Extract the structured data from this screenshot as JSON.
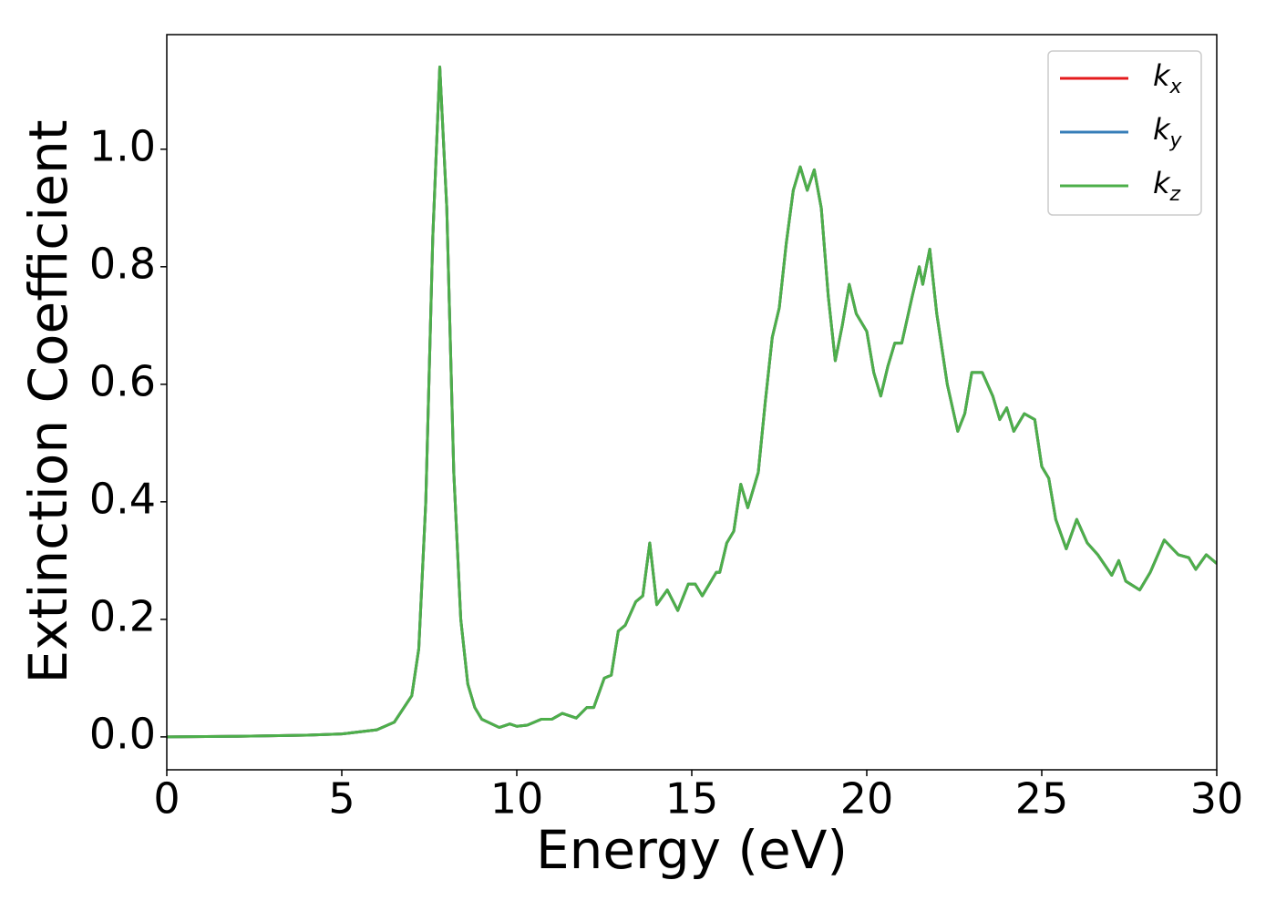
{
  "chart_data": {
    "type": "line",
    "xlabel": "Energy (eV)",
    "ylabel": "Extinction Coefficient",
    "x": [
      0,
      2,
      4,
      5,
      6,
      6.5,
      7,
      7.2,
      7.4,
      7.6,
      7.8,
      8.0,
      8.2,
      8.4,
      8.6,
      8.8,
      9.0,
      9.5,
      9.8,
      10,
      10.3,
      10.7,
      11,
      11.3,
      11.7,
      12,
      12.2,
      12.5,
      12.7,
      12.9,
      13.1,
      13.4,
      13.6,
      13.8,
      14.0,
      14.3,
      14.6,
      14.9,
      15.1,
      15.3,
      15.7,
      15.8,
      16.0,
      16.2,
      16.4,
      16.6,
      16.9,
      17.1,
      17.3,
      17.5,
      17.7,
      17.9,
      18.1,
      18.3,
      18.5,
      18.7,
      18.9,
      19.1,
      19.3,
      19.5,
      19.7,
      20.0,
      20.2,
      20.4,
      20.6,
      20.8,
      21.0,
      21.3,
      21.5,
      21.6,
      21.8,
      22.0,
      22.3,
      22.6,
      22.8,
      23.0,
      23.3,
      23.6,
      23.8,
      24.0,
      24.2,
      24.5,
      24.8,
      25.0,
      25.2,
      25.4,
      25.7,
      26.0,
      26.3,
      26.6,
      27.0,
      27.2,
      27.4,
      27.8,
      28.1,
      28.5,
      28.9,
      29.2,
      29.4,
      29.7,
      30.0
    ],
    "series": [
      {
        "name": "k_x",
        "color": "#e41a1c",
        "values": [
          0,
          0.001,
          0.003,
          0.005,
          0.012,
          0.025,
          0.07,
          0.15,
          0.4,
          0.85,
          1.14,
          0.9,
          0.45,
          0.2,
          0.09,
          0.05,
          0.03,
          0.016,
          0.022,
          0.018,
          0.02,
          0.03,
          0.03,
          0.04,
          0.032,
          0.05,
          0.05,
          0.1,
          0.105,
          0.18,
          0.19,
          0.23,
          0.24,
          0.33,
          0.225,
          0.25,
          0.215,
          0.26,
          0.26,
          0.24,
          0.28,
          0.28,
          0.33,
          0.35,
          0.43,
          0.39,
          0.45,
          0.57,
          0.68,
          0.73,
          0.84,
          0.93,
          0.97,
          0.93,
          0.965,
          0.9,
          0.75,
          0.64,
          0.7,
          0.77,
          0.72,
          0.69,
          0.62,
          0.58,
          0.63,
          0.67,
          0.67,
          0.75,
          0.8,
          0.77,
          0.83,
          0.72,
          0.6,
          0.52,
          0.55,
          0.62,
          0.62,
          0.58,
          0.54,
          0.56,
          0.52,
          0.55,
          0.54,
          0.46,
          0.44,
          0.37,
          0.32,
          0.37,
          0.33,
          0.31,
          0.275,
          0.3,
          0.265,
          0.25,
          0.28,
          0.335,
          0.31,
          0.305,
          0.285,
          0.31,
          0.295
        ]
      },
      {
        "name": "k_y",
        "color": "#377eb8",
        "values": [
          0,
          0.001,
          0.003,
          0.005,
          0.012,
          0.025,
          0.07,
          0.15,
          0.4,
          0.85,
          1.14,
          0.9,
          0.45,
          0.2,
          0.09,
          0.05,
          0.03,
          0.016,
          0.022,
          0.018,
          0.02,
          0.03,
          0.03,
          0.04,
          0.032,
          0.05,
          0.05,
          0.1,
          0.105,
          0.18,
          0.19,
          0.23,
          0.24,
          0.33,
          0.225,
          0.25,
          0.215,
          0.26,
          0.26,
          0.24,
          0.28,
          0.28,
          0.33,
          0.35,
          0.43,
          0.39,
          0.45,
          0.57,
          0.68,
          0.73,
          0.84,
          0.93,
          0.97,
          0.93,
          0.965,
          0.9,
          0.75,
          0.64,
          0.7,
          0.77,
          0.72,
          0.69,
          0.62,
          0.58,
          0.63,
          0.67,
          0.67,
          0.75,
          0.8,
          0.77,
          0.83,
          0.72,
          0.6,
          0.52,
          0.55,
          0.62,
          0.62,
          0.58,
          0.54,
          0.56,
          0.52,
          0.55,
          0.54,
          0.46,
          0.44,
          0.37,
          0.32,
          0.37,
          0.33,
          0.31,
          0.275,
          0.3,
          0.265,
          0.25,
          0.28,
          0.335,
          0.31,
          0.305,
          0.285,
          0.31,
          0.295
        ]
      },
      {
        "name": "k_z",
        "color": "#4daf4a",
        "values": [
          0,
          0.001,
          0.003,
          0.005,
          0.012,
          0.025,
          0.07,
          0.15,
          0.4,
          0.85,
          1.14,
          0.9,
          0.45,
          0.2,
          0.09,
          0.05,
          0.03,
          0.016,
          0.022,
          0.018,
          0.02,
          0.03,
          0.03,
          0.04,
          0.032,
          0.05,
          0.05,
          0.1,
          0.105,
          0.18,
          0.19,
          0.23,
          0.24,
          0.33,
          0.225,
          0.25,
          0.215,
          0.26,
          0.26,
          0.24,
          0.28,
          0.28,
          0.33,
          0.35,
          0.43,
          0.39,
          0.45,
          0.57,
          0.68,
          0.73,
          0.84,
          0.93,
          0.97,
          0.93,
          0.965,
          0.9,
          0.75,
          0.64,
          0.7,
          0.77,
          0.72,
          0.69,
          0.62,
          0.58,
          0.63,
          0.67,
          0.67,
          0.75,
          0.8,
          0.77,
          0.83,
          0.72,
          0.6,
          0.52,
          0.55,
          0.62,
          0.62,
          0.58,
          0.54,
          0.56,
          0.52,
          0.55,
          0.54,
          0.46,
          0.44,
          0.37,
          0.32,
          0.37,
          0.33,
          0.31,
          0.275,
          0.3,
          0.265,
          0.25,
          0.28,
          0.335,
          0.31,
          0.305,
          0.285,
          0.31,
          0.295
        ]
      }
    ],
    "xlim": [
      0,
      30
    ],
    "xticks": [
      0,
      5,
      10,
      15,
      20,
      25,
      30
    ],
    "ylim": [
      -0.056,
      1.195
    ],
    "yticks": [
      {
        "value": 0,
        "label": "0.0"
      },
      {
        "value": 0.2,
        "label": "0.2"
      },
      {
        "value": 0.4,
        "label": "0.4"
      },
      {
        "value": 0.6,
        "label": "0.6"
      },
      {
        "value": 0.8,
        "label": "0.8"
      },
      {
        "value": 1.0,
        "label": "1.0"
      }
    ],
    "grid": false,
    "legend": "upper right"
  }
}
